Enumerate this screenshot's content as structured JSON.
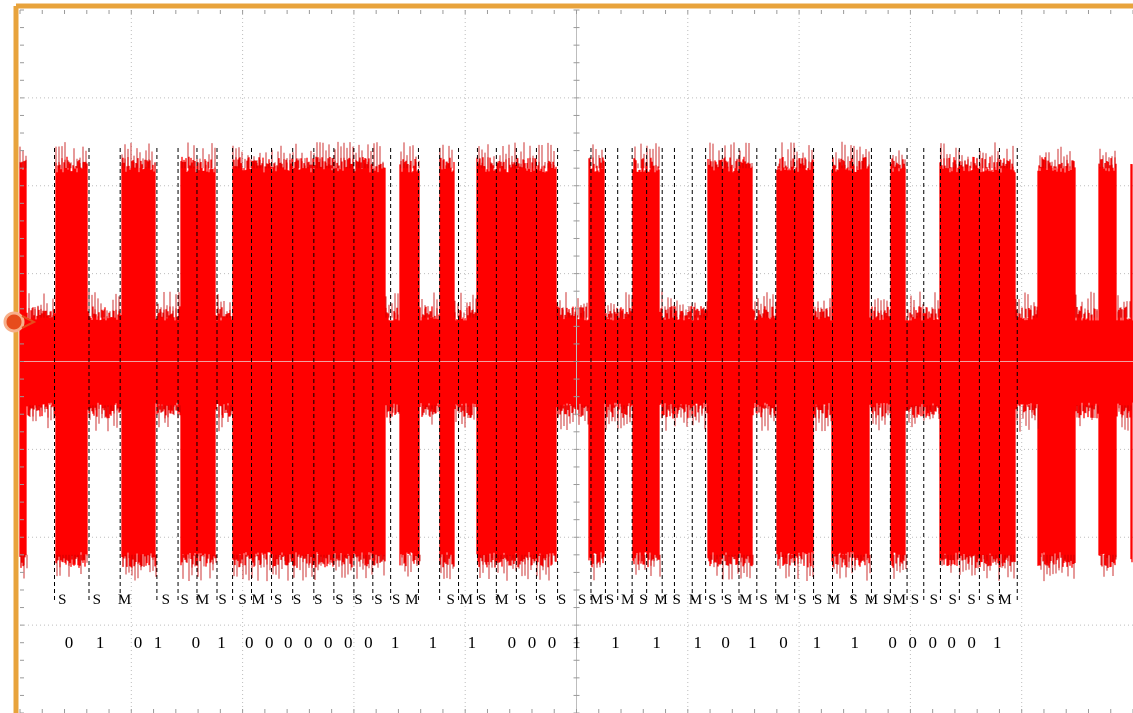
{
  "colors": {
    "trace": "#ff0000",
    "trace_dark": "#c00000",
    "frame": "#e8a33c",
    "grid": "#bdbdbd",
    "marker": "#000000",
    "text": "#000000"
  },
  "icons": {
    "trigger_marker": "circle-arrow-icon"
  },
  "chart_data": {
    "type": "area",
    "grid": true,
    "grid_divisions": {
      "x": 10,
      "y": 8
    },
    "ylim": [
      -4,
      4
    ],
    "xlim": [
      0,
      10
    ],
    "carrier_amplitude": {
      "low": 0.55,
      "high": 2.25
    },
    "high_intervals": [
      [
        0.0,
        0.06
      ],
      [
        0.32,
        0.61
      ],
      [
        0.91,
        1.22
      ],
      [
        1.44,
        1.76
      ],
      [
        1.91,
        3.28
      ],
      [
        3.41,
        3.59
      ],
      [
        3.77,
        3.9
      ],
      [
        4.1,
        4.82
      ],
      [
        5.11,
        5.25
      ],
      [
        5.5,
        5.75
      ],
      [
        6.18,
        6.58
      ],
      [
        6.8,
        7.13
      ],
      [
        7.29,
        7.63
      ],
      [
        7.82,
        7.96
      ],
      [
        8.26,
        8.94
      ],
      [
        9.14,
        9.48
      ],
      [
        9.69,
        9.85
      ],
      [
        9.98,
        10.0
      ]
    ],
    "dashed_markers_x": [
      0.31,
      0.62,
      0.9,
      1.23,
      1.42,
      1.59,
      1.77,
      1.91,
      2.08,
      2.26,
      2.45,
      2.64,
      2.82,
      3.0,
      3.17,
      3.33,
      3.58,
      3.77,
      3.94,
      4.11,
      4.28,
      4.46,
      4.64,
      4.83,
      5.13,
      5.26,
      5.37,
      5.5,
      5.63,
      5.77,
      5.88,
      6.04,
      6.16,
      6.31,
      6.46,
      6.62,
      6.79,
      6.96,
      7.13,
      7.3,
      7.48,
      7.65,
      7.82,
      7.97,
      8.12,
      8.27,
      8.44,
      8.62,
      8.8,
      8.96
    ],
    "symbol_labels": [
      {
        "text": "S",
        "x": 0.38
      },
      {
        "text": "S",
        "x": 0.69
      },
      {
        "text": "M",
        "x": 0.94
      },
      {
        "text": "S",
        "x": 1.31
      },
      {
        "text": "S",
        "x": 1.48
      },
      {
        "text": "M",
        "x": 1.64
      },
      {
        "text": "S",
        "x": 1.82
      },
      {
        "text": "S",
        "x": 2.0
      },
      {
        "text": "M",
        "x": 2.14
      },
      {
        "text": "S",
        "x": 2.32
      },
      {
        "text": "S",
        "x": 2.49
      },
      {
        "text": "S",
        "x": 2.68
      },
      {
        "text": "S",
        "x": 2.87
      },
      {
        "text": "S",
        "x": 3.04
      },
      {
        "text": "S",
        "x": 3.22
      },
      {
        "text": "S",
        "x": 3.38
      },
      {
        "text": "M",
        "x": 3.52
      },
      {
        "text": "S",
        "x": 3.87
      },
      {
        "text": "M",
        "x": 4.01
      },
      {
        "text": "S",
        "x": 4.15
      },
      {
        "text": "M",
        "x": 4.33
      },
      {
        "text": "S",
        "x": 4.51
      },
      {
        "text": "S",
        "x": 4.69
      },
      {
        "text": "S",
        "x": 4.87
      },
      {
        "text": "S",
        "x": 5.05
      },
      {
        "text": "M",
        "x": 5.18
      },
      {
        "text": "S",
        "x": 5.3
      },
      {
        "text": "M",
        "x": 5.46
      },
      {
        "text": "S",
        "x": 5.6
      },
      {
        "text": "M",
        "x": 5.76
      },
      {
        "text": "S",
        "x": 5.9
      },
      {
        "text": "M",
        "x": 6.07
      },
      {
        "text": "S",
        "x": 6.22
      },
      {
        "text": "S",
        "x": 6.36
      },
      {
        "text": "M",
        "x": 6.52
      },
      {
        "text": "S",
        "x": 6.68
      },
      {
        "text": "M",
        "x": 6.85
      },
      {
        "text": "S",
        "x": 7.03
      },
      {
        "text": "S",
        "x": 7.17
      },
      {
        "text": "M",
        "x": 7.31
      },
      {
        "text": "S",
        "x": 7.49
      },
      {
        "text": "M",
        "x": 7.65
      },
      {
        "text": "S",
        "x": 7.79
      },
      {
        "text": "M",
        "x": 7.9
      },
      {
        "text": "S",
        "x": 8.04
      },
      {
        "text": "S",
        "x": 8.21
      },
      {
        "text": "S",
        "x": 8.38
      },
      {
        "text": "S",
        "x": 8.55
      },
      {
        "text": "S",
        "x": 8.72
      },
      {
        "text": "M",
        "x": 8.85
      }
    ],
    "bit_labels": [
      {
        "text": "0",
        "x": 0.44
      },
      {
        "text": "1",
        "x": 0.72
      },
      {
        "text": "0",
        "x": 1.06
      },
      {
        "text": "1",
        "x": 1.24
      },
      {
        "text": "0",
        "x": 1.58
      },
      {
        "text": "1",
        "x": 1.81
      },
      {
        "text": "0",
        "x": 2.06
      },
      {
        "text": "0",
        "x": 2.24
      },
      {
        "text": "0",
        "x": 2.41
      },
      {
        "text": "0",
        "x": 2.59
      },
      {
        "text": "0",
        "x": 2.77
      },
      {
        "text": "0",
        "x": 2.95
      },
      {
        "text": "0",
        "x": 3.13
      },
      {
        "text": "1",
        "x": 3.37
      },
      {
        "text": "1",
        "x": 3.71
      },
      {
        "text": "1",
        "x": 4.06
      },
      {
        "text": "0",
        "x": 4.42
      },
      {
        "text": "0",
        "x": 4.6
      },
      {
        "text": "0",
        "x": 4.78
      },
      {
        "text": "1",
        "x": 5.0
      },
      {
        "text": "1",
        "x": 5.35
      },
      {
        "text": "1",
        "x": 5.72
      },
      {
        "text": "1",
        "x": 6.09
      },
      {
        "text": "0",
        "x": 6.34
      },
      {
        "text": "1",
        "x": 6.58
      },
      {
        "text": "0",
        "x": 6.86
      },
      {
        "text": "1",
        "x": 7.16
      },
      {
        "text": "1",
        "x": 7.5
      },
      {
        "text": "0",
        "x": 7.84
      },
      {
        "text": "0",
        "x": 8.02
      },
      {
        "text": "0",
        "x": 8.2
      },
      {
        "text": "0",
        "x": 8.37
      },
      {
        "text": "0",
        "x": 8.55
      },
      {
        "text": "1",
        "x": 8.78
      }
    ]
  }
}
